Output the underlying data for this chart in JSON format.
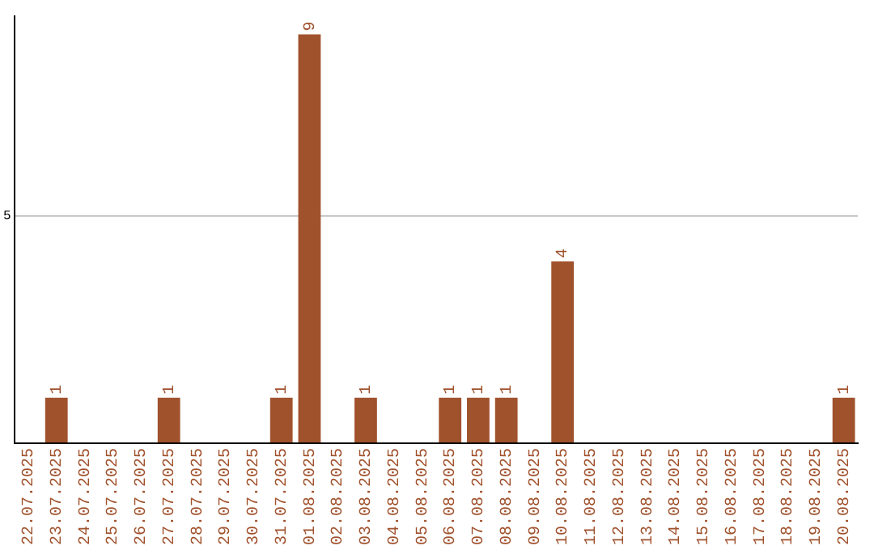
{
  "chart_data": {
    "type": "bar",
    "categories": [
      "22.07.2025",
      "23.07.2025",
      "24.07.2025",
      "25.07.2025",
      "26.07.2025",
      "27.07.2025",
      "28.07.2025",
      "29.07.2025",
      "30.07.2025",
      "31.07.2025",
      "01.08.2025",
      "02.08.2025",
      "03.08.2025",
      "04.08.2025",
      "05.08.2025",
      "06.08.2025",
      "07.08.2025",
      "08.08.2025",
      "09.08.2025",
      "10.08.2025",
      "11.08.2025",
      "12.08.2025",
      "13.08.2025",
      "14.08.2025",
      "15.08.2025",
      "16.08.2025",
      "17.08.2025",
      "18.08.2025",
      "19.08.2025",
      "20.08.2025"
    ],
    "values": [
      0,
      1,
      0,
      0,
      0,
      1,
      0,
      0,
      0,
      1,
      9,
      0,
      1,
      0,
      0,
      1,
      1,
      1,
      0,
      4,
      0,
      0,
      0,
      0,
      0,
      0,
      0,
      0,
      0,
      1
    ],
    "value_labels": [
      null,
      "1",
      null,
      null,
      null,
      "1",
      null,
      null,
      null,
      "1",
      "9",
      null,
      "1",
      null,
      null,
      "1",
      "1",
      "1",
      null,
      "4",
      null,
      null,
      null,
      null,
      null,
      null,
      null,
      null,
      null,
      "1"
    ],
    "color": "#a0522d",
    "ylim": [
      0,
      9.4
    ],
    "yticks": [
      {
        "value": 0,
        "label": null
      },
      5
    ],
    "grid": "y",
    "legend": false
  }
}
